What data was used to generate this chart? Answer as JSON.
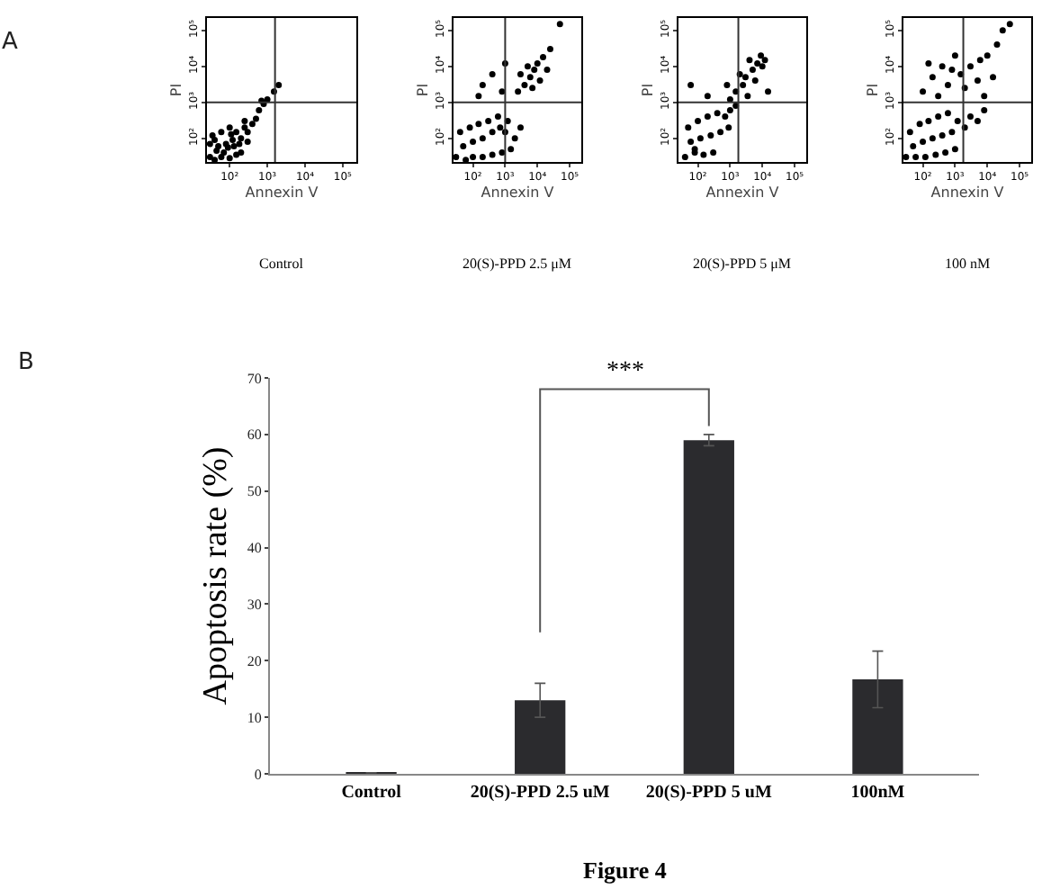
{
  "chart_data": [
    {
      "type": "scatter",
      "xlabel": "Annexin V",
      "ylabel": "PI",
      "annotations": [
        "A",
        "Control"
      ],
      "log": "xy",
      "marker": "circle",
      "color": "#000000",
      "xlim": [
        25,
        230000
      ],
      "ylim": [
        22,
        220000
      ],
      "xticks": [
        {
          "value": 100,
          "label": "10²"
        },
        {
          "value": 1000,
          "label": "10³"
        },
        {
          "value": 10000,
          "label": "10⁴"
        },
        {
          "value": 100000,
          "label": "10⁵"
        }
      ],
      "yticks": [
        {
          "value": 100,
          "label": "10²"
        },
        {
          "value": 1000,
          "label": "10³"
        },
        {
          "value": 10000,
          "label": "10⁴"
        },
        {
          "value": 100000,
          "label": "10⁵"
        }
      ],
      "ref_lines": [
        {
          "axis": "x",
          "value": 1600
        },
        {
          "axis": "y",
          "value": 1000
        }
      ],
      "x": [
        30,
        40,
        60,
        100,
        150,
        200,
        50,
        80,
        120,
        200,
        300,
        400,
        500,
        35,
        60,
        100,
        250,
        600,
        800,
        1000,
        1500,
        2000,
        700,
        30,
        300,
        150,
        45,
        70,
        90,
        130,
        180,
        250,
        40,
        110
      ],
      "values": [
        30,
        25,
        30,
        28,
        35,
        40,
        60,
        70,
        90,
        100,
        150,
        250,
        350,
        120,
        150,
        200,
        300,
        600,
        900,
        1200,
        2000,
        3000,
        1100,
        70,
        80,
        150,
        45,
        40,
        55,
        60,
        70,
        200,
        90,
        130
      ]
    },
    {
      "type": "scatter",
      "xlabel": "Annexin V",
      "ylabel": "PI",
      "annotations": [
        "20(S)-PPD 2.5 μM"
      ],
      "log": "xy",
      "marker": "circle",
      "color": "#000000",
      "xlim": [
        25,
        230000
      ],
      "ylim": [
        22,
        220000
      ],
      "xticks": [
        {
          "value": 100,
          "label": "10²"
        },
        {
          "value": 1000,
          "label": "10³"
        },
        {
          "value": 10000,
          "label": "10⁴"
        },
        {
          "value": 100000,
          "label": "10⁵"
        }
      ],
      "yticks": [
        {
          "value": 100,
          "label": "10²"
        },
        {
          "value": 1000,
          "label": "10³"
        },
        {
          "value": 10000,
          "label": "10⁴"
        },
        {
          "value": 100000,
          "label": "10⁵"
        }
      ],
      "ref_lines": [
        {
          "axis": "x",
          "value": 1000
        },
        {
          "axis": "y",
          "value": 1000
        }
      ],
      "x": [
        30,
        60,
        100,
        200,
        400,
        800,
        1500,
        50,
        100,
        200,
        400,
        700,
        1000,
        40,
        80,
        150,
        300,
        600,
        2000,
        3000,
        1200,
        2500,
        4000,
        6000,
        8000,
        10000,
        15000,
        5000,
        3000,
        12000,
        20000,
        7000,
        25000,
        200,
        400,
        800,
        150,
        1000,
        50000
      ],
      "values": [
        30,
        25,
        30,
        30,
        35,
        40,
        50,
        60,
        80,
        100,
        150,
        200,
        150,
        150,
        200,
        250,
        300,
        400,
        100,
        200,
        300,
        2000,
        3000,
        5000,
        8000,
        12000,
        18000,
        10000,
        6000,
        4000,
        8000,
        2500,
        30000,
        3000,
        6000,
        2000,
        1500,
        12000,
        150000
      ]
    },
    {
      "type": "scatter",
      "xlabel": "Annexin V",
      "ylabel": "PI",
      "annotations": [
        "20(S)-PPD 5 μM"
      ],
      "log": "xy",
      "marker": "circle",
      "color": "#000000",
      "xlim": [
        25,
        230000
      ],
      "ylim": [
        22,
        220000
      ],
      "xticks": [
        {
          "value": 100,
          "label": "10²"
        },
        {
          "value": 1000,
          "label": "10³"
        },
        {
          "value": 10000,
          "label": "10⁴"
        },
        {
          "value": 100000,
          "label": "10⁵"
        }
      ],
      "yticks": [
        {
          "value": 100,
          "label": "10²"
        },
        {
          "value": 1000,
          "label": "10³"
        },
        {
          "value": 10000,
          "label": "10⁴"
        },
        {
          "value": 100000,
          "label": "10⁵"
        }
      ],
      "ref_lines": [
        {
          "axis": "x",
          "value": 1800
        },
        {
          "axis": "y",
          "value": 1000
        }
      ],
      "x": [
        40,
        80,
        150,
        300,
        60,
        120,
        250,
        500,
        900,
        50,
        100,
        200,
        400,
        700,
        1000,
        1500,
        80,
        1000,
        1500,
        2500,
        3000,
        5000,
        7000,
        9000,
        4000,
        2000,
        6000,
        10000,
        800,
        12000,
        3500,
        200,
        60,
        15000
      ],
      "values": [
        30,
        40,
        35,
        40,
        80,
        100,
        120,
        150,
        200,
        200,
        300,
        400,
        500,
        400,
        600,
        800,
        50,
        1200,
        2000,
        3000,
        5000,
        8000,
        12000,
        20000,
        15000,
        6000,
        4000,
        10000,
        3000,
        15000,
        1500,
        1500,
        3000,
        2000
      ]
    },
    {
      "type": "scatter",
      "xlabel": "Annexin V",
      "ylabel": "PI",
      "annotations": [
        "100 nM"
      ],
      "log": "xy",
      "marker": "circle",
      "color": "#000000",
      "xlim": [
        25,
        230000
      ],
      "ylim": [
        22,
        220000
      ],
      "xticks": [
        {
          "value": 100,
          "label": "10²"
        },
        {
          "value": 1000,
          "label": "10³"
        },
        {
          "value": 10000,
          "label": "10⁴"
        },
        {
          "value": 100000,
          "label": "10⁵"
        }
      ],
      "yticks": [
        {
          "value": 100,
          "label": "10²"
        },
        {
          "value": 1000,
          "label": "10³"
        },
        {
          "value": 10000,
          "label": "10⁴"
        },
        {
          "value": 100000,
          "label": "10⁵"
        }
      ],
      "ref_lines": [
        {
          "axis": "x",
          "value": 1800
        },
        {
          "axis": "y",
          "value": 1000
        }
      ],
      "x": [
        30,
        60,
        120,
        250,
        500,
        1000,
        50,
        100,
        200,
        400,
        800,
        40,
        80,
        150,
        300,
        600,
        1200,
        2000,
        3000,
        5000,
        8000,
        100,
        200,
        400,
        800,
        1500,
        3000,
        6000,
        10000,
        5000,
        2000,
        300,
        150,
        15000,
        600,
        20000,
        30000,
        50000,
        1000,
        8000
      ],
      "values": [
        30,
        30,
        30,
        35,
        40,
        50,
        60,
        80,
        100,
        120,
        150,
        150,
        250,
        300,
        400,
        500,
        300,
        200,
        400,
        300,
        600,
        2000,
        5000,
        10000,
        8000,
        6000,
        10000,
        15000,
        20000,
        4000,
        2500,
        1500,
        12000,
        5000,
        3000,
        40000,
        100000,
        150000,
        20000,
        1500
      ]
    },
    {
      "type": "bar",
      "ylabel": "Apoptosis rate (%)",
      "annotations": [
        "B",
        "***",
        "Figure 4"
      ],
      "categories": [
        "Control",
        "20(S)-PPD 2.5 uM",
        "20(S)-PPD 5 uM",
        "100nM"
      ],
      "values": [
        0.2,
        13,
        59,
        16.7
      ],
      "errors": [
        null,
        3,
        1,
        5
      ],
      "color": "#2b2b2e",
      "ylim": [
        0,
        70
      ],
      "yticks": [
        0,
        10,
        20,
        30,
        40,
        50,
        60,
        70
      ]
    }
  ]
}
